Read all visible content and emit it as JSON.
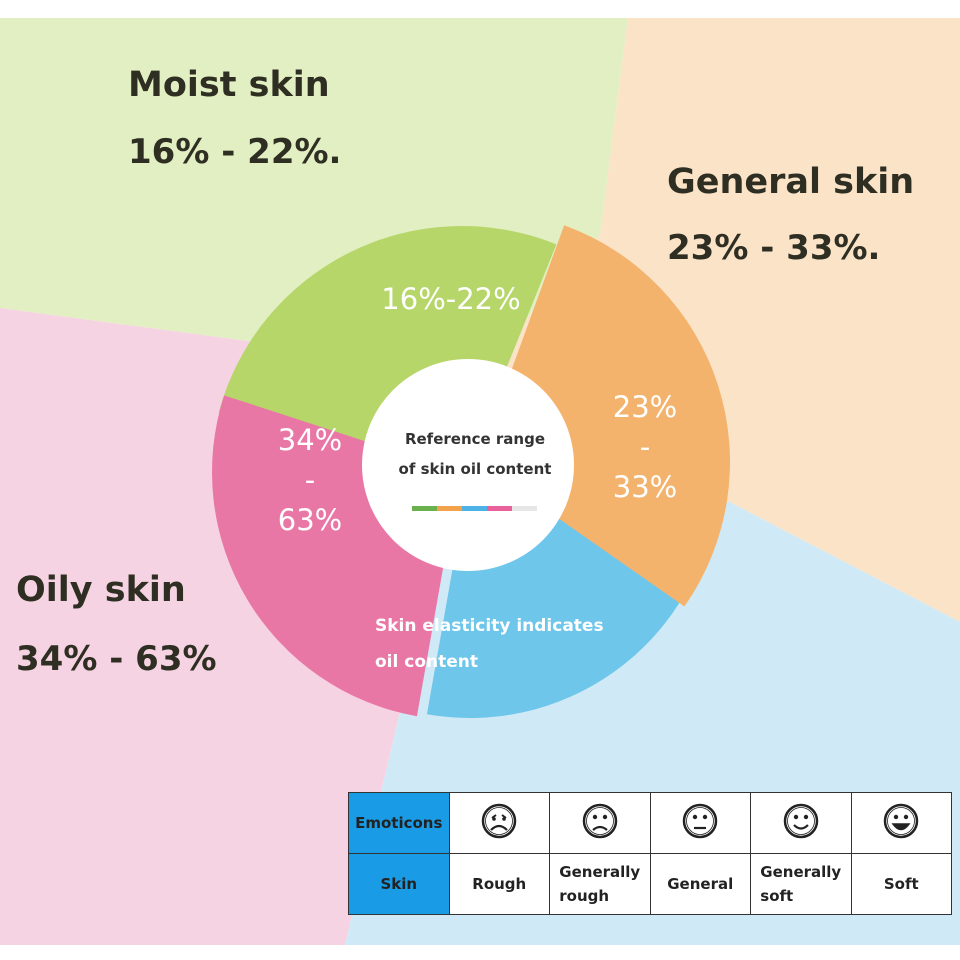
{
  "quadrants": {
    "moist": {
      "title": "Moist skin",
      "range": "16% - 22%.",
      "color": "#e2efc2"
    },
    "general": {
      "title": "General skin",
      "range": "23% - 33%.",
      "color": "#fbe3c8"
    },
    "oily": {
      "title": "Oily skin",
      "range": "34% - 63%",
      "color": "#f6d3e2"
    },
    "elastic": {
      "color": "#cfeaf6"
    }
  },
  "ring": {
    "moist": {
      "label": "16%-22%",
      "color": "#b6d66a"
    },
    "general": {
      "line1": "23%",
      "line2": "-",
      "line3": "33%",
      "color": "#f4b36d"
    },
    "oily": {
      "line1": "34%",
      "line2": "-",
      "line3": "63%",
      "color": "#e977a6"
    },
    "elastic": {
      "line1": "Skin elasticity indicates",
      "line2": "oil content",
      "color": "#6ec6ea"
    }
  },
  "center": {
    "line1": "Reference range",
    "line2": "of skin oil content",
    "bar_colors": [
      "#6ab04c",
      "#f2a24a",
      "#4db2e6",
      "#e9609a",
      "#e6e6e6"
    ]
  },
  "legend_table": {
    "row1_header": "Emoticons",
    "row2_header": "Skin",
    "faces": [
      "frowning-mouth-icon",
      "sad-face-icon",
      "neutral-face-icon",
      "smiling-face-icon",
      "grinning-face-icon"
    ],
    "skin": [
      {
        "line1": "Rough"
      },
      {
        "line1": "Generally",
        "line2": "rough"
      },
      {
        "line1": "General"
      },
      {
        "line1": "Generally",
        "line2": "soft"
      },
      {
        "line1": "Soft"
      }
    ]
  }
}
